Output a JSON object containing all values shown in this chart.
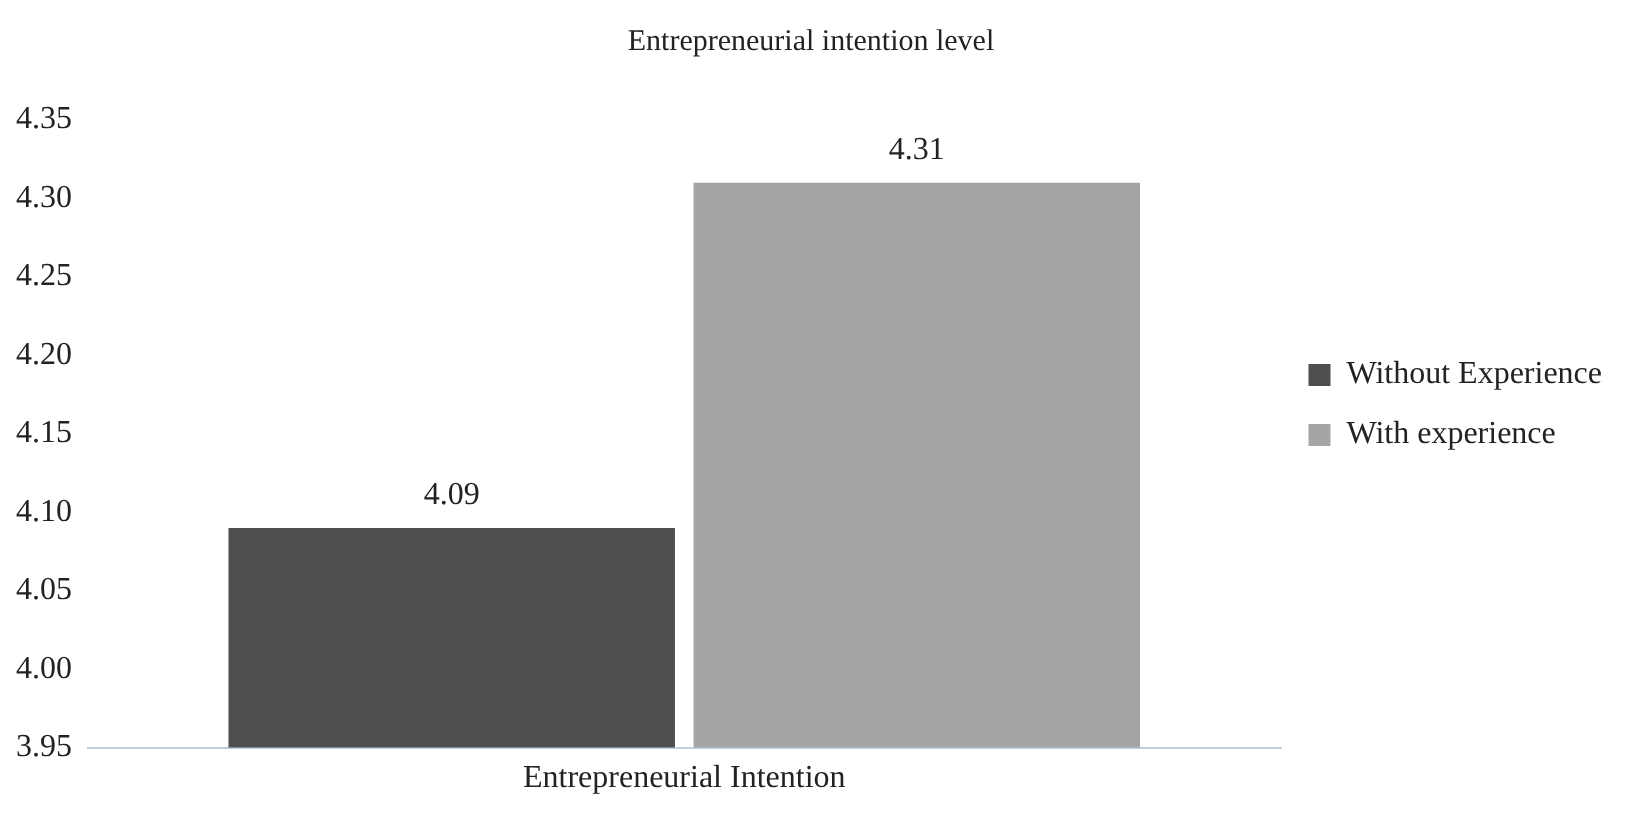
{
  "chart_data": {
    "type": "bar",
    "title": "Entrepreneurial intention level",
    "categories": [
      "Entrepreneurial Intention"
    ],
    "series": [
      {
        "name": "Without Experience",
        "color": "#4f4f4f",
        "values": [
          4.09
        ]
      },
      {
        "name": "With experience",
        "color": "#a5a5a5",
        "values": [
          4.31
        ]
      }
    ],
    "ylim": [
      3.95,
      4.35
    ],
    "yticks": [
      {
        "value": 3.95,
        "label": "3.95"
      },
      {
        "value": 4.0,
        "label": "4.00"
      },
      {
        "value": 4.05,
        "label": "4.05"
      },
      {
        "value": 4.1,
        "label": "4.10"
      },
      {
        "value": 4.15,
        "label": "4.15"
      },
      {
        "value": 4.2,
        "label": "4.20"
      },
      {
        "value": 4.25,
        "label": "4.25"
      },
      {
        "value": 4.3,
        "label": "4.30"
      },
      {
        "value": 4.35,
        "label": "4.35"
      }
    ],
    "grid": false,
    "legend": "right",
    "data_labels": true
  }
}
